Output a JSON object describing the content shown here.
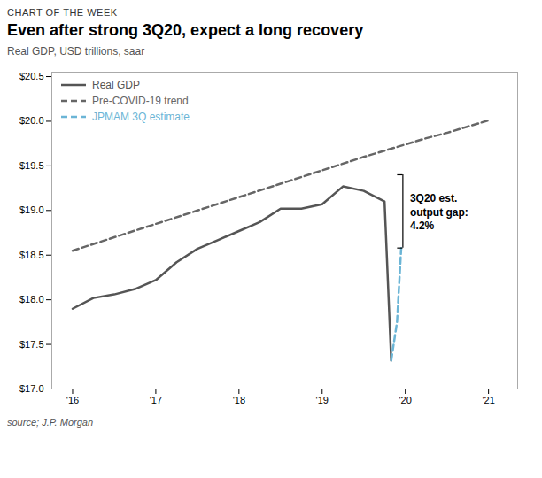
{
  "chart_data": {
    "type": "line",
    "chart_label": "CHART OF THE WEEK",
    "title": "Even after strong 3Q20, expect a long recovery",
    "subtitle": "Real GDP, USD trillions, saar",
    "source": "source; J.P. Morgan",
    "xlim": [
      2015.75,
      2021.35
    ],
    "ylim": [
      17.0,
      20.55
    ],
    "xticks": [
      {
        "value": 2016,
        "label": "'16"
      },
      {
        "value": 2017,
        "label": "'17"
      },
      {
        "value": 2018,
        "label": "'18"
      },
      {
        "value": 2019,
        "label": "'19"
      },
      {
        "value": 2020,
        "label": "'20"
      },
      {
        "value": 2021,
        "label": "'21"
      }
    ],
    "yticks": [
      {
        "value": 17.0,
        "label": "$17.0"
      },
      {
        "value": 17.5,
        "label": "$17.5"
      },
      {
        "value": 18.0,
        "label": "$18.0"
      },
      {
        "value": 18.5,
        "label": "$18.5"
      },
      {
        "value": 19.0,
        "label": "$19.0"
      },
      {
        "value": 19.5,
        "label": "$19.5"
      },
      {
        "value": 20.0,
        "label": "$20.0"
      },
      {
        "value": 20.5,
        "label": "$20.5"
      }
    ],
    "grid": false,
    "legend": "upper left",
    "series": [
      {
        "name": "Real GDP",
        "color": "#555555",
        "line_style": "solid",
        "x": [
          2016.0,
          2016.25,
          2016.5,
          2016.75,
          2017.0,
          2017.25,
          2017.5,
          2017.75,
          2018.0,
          2018.25,
          2018.5,
          2018.75,
          2019.0,
          2019.25,
          2019.5,
          2019.75,
          2019.83
        ],
        "values": [
          17.9,
          18.02,
          18.06,
          18.12,
          18.22,
          18.42,
          18.57,
          18.67,
          18.77,
          18.87,
          19.02,
          19.02,
          19.07,
          19.27,
          19.22,
          19.1,
          17.32
        ]
      },
      {
        "name": "Pre-COVID-19 trend",
        "color": "#666666",
        "line_style": "dashed",
        "x": [
          2016.0,
          2016.5,
          2017.0,
          2017.5,
          2018.0,
          2018.5,
          2019.0,
          2019.5,
          2019.75,
          2020.0,
          2020.25,
          2020.5,
          2020.75,
          2021.0
        ],
        "values": [
          18.55,
          18.7,
          18.85,
          19.0,
          19.15,
          19.3,
          19.45,
          19.6,
          19.67,
          19.74,
          19.81,
          19.87,
          19.94,
          20.01
        ]
      },
      {
        "name": "JPMAM 3Q estimate",
        "color": "#6bb5d6",
        "line_style": "dashed",
        "x": [
          2019.83,
          2019.9,
          2019.95
        ],
        "values": [
          17.32,
          17.75,
          18.58
        ]
      }
    ],
    "annotations": [
      {
        "text": "3Q20 est.\noutput gap:\n4.2%",
        "bracket_x": 2019.97,
        "bracket_top": 19.4,
        "bracket_bottom": 18.58
      }
    ]
  }
}
